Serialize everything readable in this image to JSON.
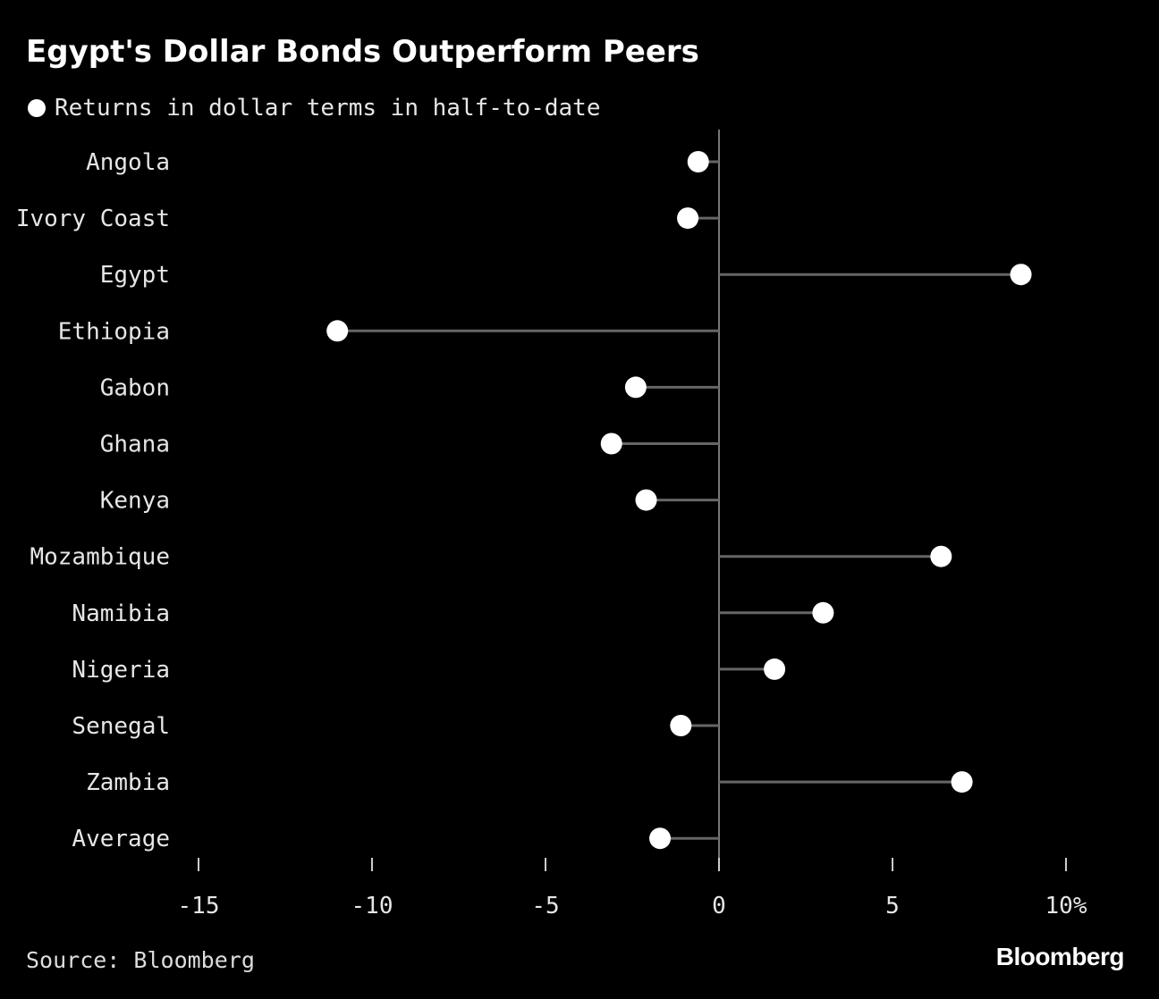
{
  "chart_data": {
    "type": "dot",
    "title": "Egypt's Dollar Bonds Outperform Peers",
    "legend": "Returns in dollar terms in half-to-date",
    "categories": [
      "Angola",
      "Ivory Coast",
      "Egypt",
      "Ethiopia",
      "Gabon",
      "Ghana",
      "Kenya",
      "Mozambique",
      "Namibia",
      "Nigeria",
      "Senegal",
      "Zambia",
      "Average"
    ],
    "series": [
      {
        "name": "Returns in dollar terms in half-to-date",
        "values": [
          -0.6,
          -0.9,
          8.7,
          -11.0,
          -2.4,
          -3.1,
          -2.1,
          6.4,
          3.0,
          1.6,
          -1.1,
          7.0,
          -1.7
        ]
      }
    ],
    "xlim": [
      -15,
      10
    ],
    "xticks": [
      "-15",
      "-10",
      "-5",
      "0",
      "5",
      "10%"
    ],
    "xtick_values": [
      -15,
      -10,
      -5,
      0,
      5,
      10
    ],
    "grid": false,
    "legend_position": "top-left"
  },
  "source": "Source: Bloomberg",
  "brand": "Bloomberg",
  "colors": {
    "background": "#000000",
    "dot": "#ffffff",
    "stem": "#666666",
    "axis": "#777777",
    "text": "#e6e6e6"
  }
}
